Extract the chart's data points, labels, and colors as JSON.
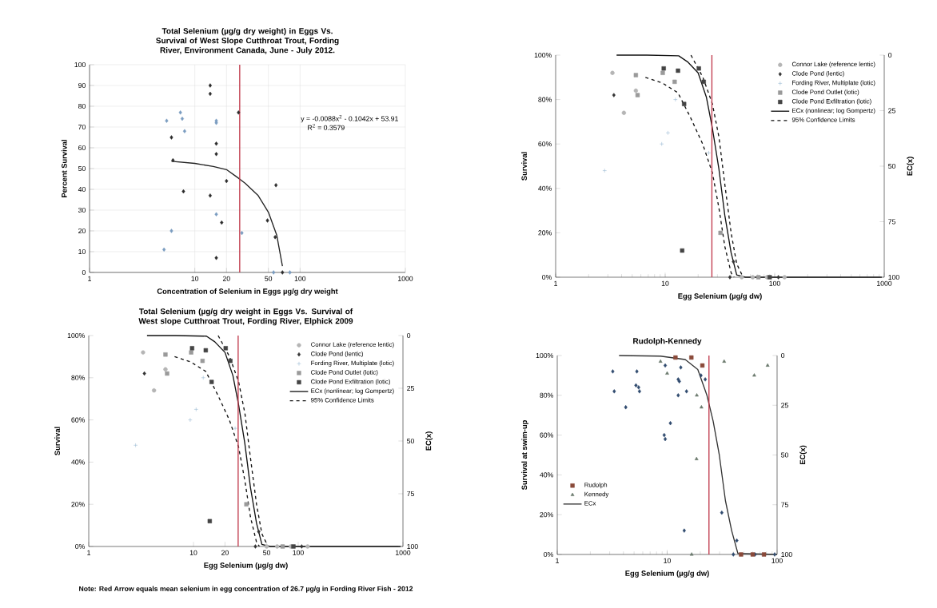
{
  "chart_data": [
    {
      "type": "scatter",
      "title": "Total Selenium (µg/g dry weight) in Eggs Vs. Survival of West Slope Cutthroat Trout, Fording River, Environment Canada, June - July 2012.",
      "xlabel": "Concentration of Selenium in Eggs µg/g dry weight",
      "ylabel": "Percent Survival",
      "log": "x",
      "grid": true,
      "xlim": [
        1,
        1000
      ],
      "xticks": [
        1,
        10,
        20,
        50,
        100,
        1000
      ],
      "ylim": [
        0,
        100
      ],
      "yticks": [
        0,
        10,
        20,
        30,
        40,
        50,
        60,
        70,
        80,
        90,
        100
      ],
      "series": [
        {
          "color": "#2b2b2b",
          "marker": "diamond",
          "x": [
            6.0,
            6.2,
            7.8,
            14,
            14,
            26,
            16,
            16,
            14,
            20,
            18,
            16,
            59,
            58,
            68,
            49
          ],
          "values": [
            65,
            54,
            39,
            90,
            86,
            77,
            62,
            57,
            37,
            44,
            24,
            7,
            42,
            17,
            0,
            25
          ]
        },
        {
          "color": "#7a9cc0",
          "marker": "diamond",
          "x": [
            5.4,
            7.3,
            7.6,
            8.0,
            6.0,
            5.1,
            16,
            16,
            16,
            28,
            56,
            80
          ],
          "values": [
            73,
            77,
            74,
            68,
            20,
            11,
            73,
            72,
            28,
            19,
            0,
            0
          ]
        },
        {
          "type": "line",
          "color": "#222222",
          "marker": "none",
          "line_style": "solid",
          "x": [
            6,
            10,
            15,
            20,
            25,
            30,
            40,
            50,
            60,
            68
          ],
          "values": [
            53.5,
            52.5,
            51,
            49.5,
            46,
            43,
            37,
            29,
            18,
            3
          ]
        }
      ],
      "ref_lines": [
        {
          "axis": "x",
          "value": 26.7,
          "color": "#c0394b"
        }
      ],
      "annotations": [
        "y = -0.0088x$^{2}$ - 0.1042x + 53.91",
        "R$^{2}$ = 0.3579"
      ]
    },
    {
      "type": "scatter",
      "title": "Total Selenium (µg/g dry weight in Eggs Vs. Survival of West slope Cutthroat Trout, Fording River, Elphick 2009",
      "xlabel": "Egg Selenium (µg/g dw)",
      "ylabel": "Survival",
      "y2label": "EC(x)",
      "log": "x",
      "legend": "top right",
      "xlim": [
        1,
        1000
      ],
      "xticks": [
        1,
        10,
        20,
        50,
        100,
        1000
      ],
      "ylim": [
        0,
        100
      ],
      "yticks": [
        {
          "value": 0,
          "label": "0%"
        },
        {
          "value": 20,
          "label": "20%"
        },
        {
          "value": 40,
          "label": "40%"
        },
        {
          "value": 60,
          "label": "60%"
        },
        {
          "value": 80,
          "label": "80%"
        },
        {
          "value": 100,
          "label": "100%"
        }
      ],
      "y2lim": [
        100,
        0
      ],
      "y2ticks": [
        0,
        25,
        50,
        75,
        100
      ],
      "series": [
        {
          "name": "Connor Lake (reference lentic)",
          "color": "#b5b5b5",
          "marker": "circle",
          "x": [
            3.3,
            4.2,
            5.4,
            50,
            63,
            85,
            123
          ],
          "values": [
            92,
            74,
            84,
            0,
            0,
            0,
            0
          ]
        },
        {
          "name": "Clode Pond (lentic)",
          "color": "#333333",
          "marker": "diamond",
          "x": [
            3.4,
            42,
            39,
            108
          ],
          "values": [
            82,
            7,
            0,
            0
          ]
        },
        {
          "name": "Fording River, Multiplate (lotic)",
          "color": "#8fb3d0",
          "marker": "cross",
          "x": [
            9.3,
            10.6,
            12.4,
            2.8,
            25
          ],
          "values": [
            60,
            65,
            80,
            48,
            56
          ]
        },
        {
          "name": "Clode Pond Outlet (lotic)",
          "color": "#9a9a9a",
          "marker": "square",
          "x": [
            5.4,
            5.6,
            9.5,
            12.2,
            32,
            71
          ],
          "values": [
            91,
            82,
            92,
            88,
            20,
            0
          ]
        },
        {
          "name": "Clode Pond Exfiltration (lotic)",
          "color": "#444444",
          "marker": "square",
          "x": [
            9.7,
            13.1,
            20.3,
            22.5,
            14.9,
            14.3,
            90
          ],
          "values": [
            94,
            93,
            94,
            88,
            78,
            12,
            0
          ]
        },
        {
          "name": "ECx (nonlinear; log Gompertz)",
          "type": "line",
          "color": "#111111",
          "marker": "none",
          "line_style": "solid",
          "x": [
            3.6,
            6.8,
            13.3,
            16,
            20,
            23.8,
            27,
            30.9,
            35,
            40,
            45,
            54,
            950
          ],
          "values": [
            100,
            100,
            99.7,
            97,
            92,
            81,
            67,
            49,
            28,
            11,
            1,
            0,
            0
          ]
        },
        {
          "name": "95% Confidence Limits",
          "type": "line",
          "color": "#111111",
          "marker": "none",
          "line_style": "dashed",
          "x": [
            17.2,
            22.1,
            27,
            31,
            35,
            40,
            45,
            51.5
          ],
          "values": [
            100,
            90,
            78,
            63,
            42,
            20,
            6,
            0
          ]
        },
        {
          "type": "line",
          "color": "#111111",
          "marker": "none",
          "line_style": "dashed",
          "x": [
            6.6,
            9.4,
            13.1,
            17,
            22,
            27,
            31,
            35,
            40,
            42.6
          ],
          "values": [
            90,
            87.5,
            83,
            72,
            60,
            47,
            31,
            14,
            2,
            0
          ]
        }
      ],
      "ref_lines": [
        {
          "axis": "x",
          "value": 26.7,
          "color": "#c0394b"
        }
      ],
      "annotations": [
        "**Note: Red Arrow equals mean selenium in egg concentration of 26.7 µg/g in Fording River Fish - 2012**"
      ]
    },
    {
      "type": "scatter",
      "xlabel": "Egg Selenium (µg/g dw)",
      "ylabel": "Survival",
      "y2label": "EC(x)",
      "log": "x",
      "legend": "top right",
      "xlim": [
        1,
        1000
      ],
      "xticks": [
        1,
        10,
        100,
        1000
      ],
      "ylim": [
        0,
        100
      ],
      "yticks": [
        {
          "value": 0,
          "label": "0%"
        },
        {
          "value": 20,
          "label": "20%"
        },
        {
          "value": 40,
          "label": "40%"
        },
        {
          "value": 60,
          "label": "60%"
        },
        {
          "value": 80,
          "label": "80%"
        },
        {
          "value": 100,
          "label": "100%"
        }
      ],
      "y2lim": [
        100,
        0
      ],
      "y2ticks": [
        0,
        25,
        50,
        75,
        100
      ],
      "series": [
        {
          "name": "Connor Lake (reference lentic)",
          "color": "#b5b5b5",
          "marker": "circle",
          "x": [
            3.3,
            4.2,
            5.4,
            50,
            63,
            85,
            123
          ],
          "values": [
            92,
            74,
            84,
            0,
            0,
            0,
            0
          ]
        },
        {
          "name": "Clode Pond (lentic)",
          "color": "#333333",
          "marker": "diamond",
          "x": [
            3.4,
            42,
            39,
            108
          ],
          "values": [
            82,
            7,
            0,
            0
          ]
        },
        {
          "name": "Fording River, Multiplate (lotic)",
          "color": "#8fb3d0",
          "marker": "cross",
          "x": [
            9.3,
            10.6,
            12.4,
            2.8,
            25
          ],
          "values": [
            60,
            65,
            80,
            48,
            56
          ]
        },
        {
          "name": "Clode Pond Outlet (lotic)",
          "color": "#9a9a9a",
          "marker": "square",
          "x": [
            5.4,
            5.6,
            9.5,
            12.2,
            32,
            71
          ],
          "values": [
            91,
            82,
            92,
            88,
            20,
            0
          ]
        },
        {
          "name": "Clode Pond Exfiltration (lotic)",
          "color": "#444444",
          "marker": "square",
          "x": [
            9.7,
            13.1,
            20.3,
            22.5,
            14.9,
            14.3,
            90
          ],
          "values": [
            94,
            93,
            94,
            88,
            78,
            12,
            0
          ]
        },
        {
          "name": "ECx (nonlinear; log Gompertz)",
          "type": "line",
          "color": "#111111",
          "marker": "none",
          "line_style": "solid",
          "x": [
            3.6,
            6.8,
            13.3,
            16,
            20,
            23.8,
            27,
            30.9,
            35,
            40,
            45,
            54,
            950
          ],
          "values": [
            100,
            100,
            99.7,
            97,
            92,
            81,
            67,
            49,
            28,
            11,
            1,
            0,
            0
          ]
        },
        {
          "name": "95% Confidence Limits",
          "type": "line",
          "color": "#111111",
          "marker": "none",
          "line_style": "dashed",
          "x": [
            17.2,
            22.1,
            27,
            31,
            35,
            40,
            45,
            51.5
          ],
          "values": [
            100,
            90,
            78,
            63,
            42,
            20,
            6,
            0
          ]
        },
        {
          "type": "line",
          "color": "#111111",
          "marker": "none",
          "line_style": "dashed",
          "x": [
            6.6,
            9.4,
            13.1,
            17,
            22,
            27,
            31,
            35,
            40,
            42.6
          ],
          "values": [
            90,
            87.5,
            83,
            72,
            60,
            47,
            31,
            14,
            2,
            0
          ]
        }
      ],
      "ref_lines": [
        {
          "axis": "x",
          "value": 26.7,
          "color": "#c0394b"
        }
      ]
    },
    {
      "type": "scatter",
      "title": "Rudolph-Kennedy",
      "xlabel": "Egg Selenium (µg/g dw)",
      "ylabel": "Survival at swim-up",
      "y2label": "EC(x)",
      "log": "x",
      "legend": "left",
      "xlim": [
        1,
        100
      ],
      "xticks": [
        1,
        10,
        100
      ],
      "ylim": [
        0,
        100
      ],
      "yticks": [
        {
          "value": 0,
          "label": "0%"
        },
        {
          "value": 20,
          "label": "20%"
        },
        {
          "value": 40,
          "label": "40%"
        },
        {
          "value": 60,
          "label": "60%"
        },
        {
          "value": 80,
          "label": "80%"
        },
        {
          "value": 100,
          "label": "100%"
        }
      ],
      "y2lim": [
        100,
        0
      ],
      "y2ticks": [
        0,
        25,
        50,
        75,
        100
      ],
      "series": [
        {
          "color": "#2f4a6e",
          "marker": "diamond",
          "x": [
            3.2,
            3.3,
            4.2,
            5.3,
            5.2,
            5.5,
            5.6,
            9.4,
            9.6,
            10.7,
            12.6,
            12.9,
            12.6,
            15,
            9.6,
            13.3,
            22.2,
            20.3,
            14.3,
            31.4,
            43,
            40,
            63,
            95
          ],
          "values": [
            92,
            82,
            74,
            92,
            85,
            84,
            82,
            60,
            58,
            66,
            88,
            87,
            80,
            82,
            95,
            94,
            88,
            90,
            12,
            21,
            7,
            0,
            0,
            0
          ]
        },
        {
          "name": "Rudolph",
          "color": "#8a4a3a",
          "marker": "square",
          "x": [
            11.9,
            16.6,
            20.9,
            47,
            60,
            76
          ],
          "values": [
            99,
            99,
            95,
            0,
            0,
            0
          ]
        },
        {
          "name": "Kennedy",
          "color": "#6b7a6e",
          "marker": "triangle",
          "x": [
            8.7,
            10,
            18.6,
            20.5,
            18.5,
            33,
            62,
            82,
            16.7
          ],
          "values": [
            97,
            91,
            80,
            74,
            48,
            97,
            90,
            95,
            0
          ]
        },
        {
          "name": "ECx",
          "type": "line",
          "color": "#333333",
          "marker": "none",
          "line_style": "solid",
          "x": [
            3.65,
            8.7,
            14.6,
            19,
            23,
            26.2,
            29.8,
            33.9,
            38.6,
            44,
            100
          ],
          "values": [
            100,
            99.7,
            98,
            93,
            80,
            67,
            50,
            27,
            12,
            0.5,
            0
          ]
        }
      ],
      "ref_lines": [
        {
          "axis": "x",
          "value": 24,
          "color": "#c0394b"
        }
      ]
    }
  ]
}
